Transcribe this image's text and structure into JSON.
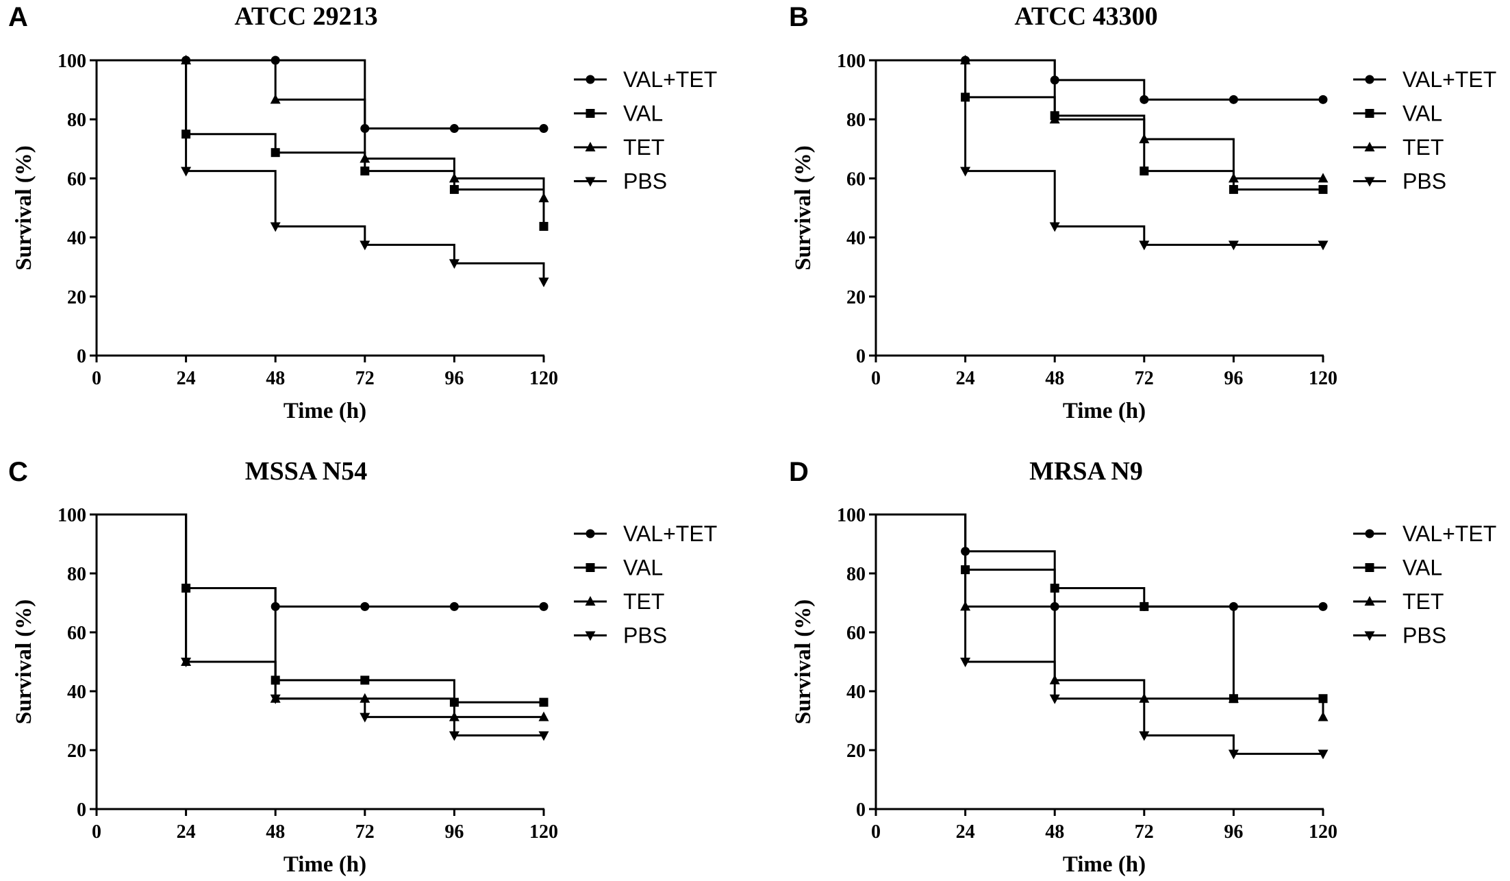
{
  "figure": {
    "panels": [
      "A",
      "B",
      "C",
      "D"
    ]
  },
  "chart_data": [
    {
      "type": "line",
      "subtype": "kaplan-meier-survival",
      "panel": "A",
      "title": "ATCC 29213",
      "xlabel": "Time (h)",
      "ylabel": "Survival (%)",
      "xlim": [
        0,
        120
      ],
      "ylim": [
        0,
        100
      ],
      "xticks": [
        0,
        24,
        48,
        72,
        96,
        120
      ],
      "yticks": [
        0,
        20,
        40,
        60,
        80,
        100
      ],
      "legend": "right",
      "series": [
        {
          "name": "VAL+TET",
          "marker": "circle",
          "x": [
            0,
            24,
            48,
            72,
            96,
            120
          ],
          "values": [
            100,
            100,
            100,
            76.9,
            76.9,
            76.9
          ]
        },
        {
          "name": "VAL",
          "marker": "square",
          "x": [
            0,
            24,
            48,
            72,
            96,
            120
          ],
          "values": [
            100,
            75,
            68.75,
            62.5,
            56.25,
            43.75
          ]
        },
        {
          "name": "TET",
          "marker": "triangle-up",
          "x": [
            0,
            24,
            48,
            72,
            96,
            120
          ],
          "values": [
            100,
            100,
            86.7,
            66.7,
            60,
            53.3
          ]
        },
        {
          "name": "PBS",
          "marker": "triangle-down",
          "x": [
            0,
            24,
            48,
            72,
            96,
            120
          ],
          "values": [
            100,
            62.5,
            43.75,
            37.5,
            31.25,
            25
          ]
        }
      ]
    },
    {
      "type": "line",
      "subtype": "kaplan-meier-survival",
      "panel": "B",
      "title": "ATCC 43300",
      "xlabel": "Time (h)",
      "ylabel": "Survival (%)",
      "xlim": [
        0,
        120
      ],
      "ylim": [
        0,
        100
      ],
      "xticks": [
        0,
        24,
        48,
        72,
        96,
        120
      ],
      "yticks": [
        0,
        20,
        40,
        60,
        80,
        100
      ],
      "legend": "right",
      "series": [
        {
          "name": "VAL+TET",
          "marker": "circle",
          "x": [
            0,
            24,
            48,
            72,
            96,
            120
          ],
          "values": [
            100,
            100,
            93.3,
            86.7,
            86.7,
            86.7
          ]
        },
        {
          "name": "VAL",
          "marker": "square",
          "x": [
            0,
            24,
            48,
            72,
            96,
            120
          ],
          "values": [
            100,
            87.5,
            81.25,
            62.5,
            56.25,
            56.25
          ]
        },
        {
          "name": "TET",
          "marker": "triangle-up",
          "x": [
            0,
            24,
            48,
            72,
            96,
            120
          ],
          "values": [
            100,
            100,
            80,
            73.3,
            60,
            60
          ]
        },
        {
          "name": "PBS",
          "marker": "triangle-down",
          "x": [
            0,
            24,
            48,
            72,
            96,
            120
          ],
          "values": [
            100,
            62.5,
            43.75,
            37.5,
            37.5,
            37.5
          ]
        }
      ]
    },
    {
      "type": "line",
      "subtype": "kaplan-meier-survival",
      "panel": "C",
      "title": "MSSA N54",
      "xlabel": "Time (h)",
      "ylabel": "Survival (%)",
      "xlim": [
        0,
        120
      ],
      "ylim": [
        0,
        100
      ],
      "xticks": [
        0,
        24,
        48,
        72,
        96,
        120
      ],
      "yticks": [
        0,
        20,
        40,
        60,
        80,
        100
      ],
      "legend": "right",
      "series": [
        {
          "name": "VAL+TET",
          "marker": "circle",
          "x": [
            0,
            24,
            48,
            72,
            96,
            120
          ],
          "values": [
            100,
            75,
            68.75,
            68.75,
            68.75,
            68.75
          ]
        },
        {
          "name": "VAL",
          "marker": "square",
          "x": [
            0,
            24,
            48,
            72,
            96,
            120
          ],
          "values": [
            100,
            75,
            43.75,
            43.75,
            36.25,
            36.25
          ]
        },
        {
          "name": "TET",
          "marker": "triangle-up",
          "x": [
            0,
            24,
            48,
            72,
            96,
            120
          ],
          "values": [
            100,
            50,
            37.5,
            37.5,
            31.25,
            31.25
          ]
        },
        {
          "name": "PBS",
          "marker": "triangle-down",
          "x": [
            0,
            24,
            48,
            72,
            96,
            120
          ],
          "values": [
            100,
            50,
            37.5,
            31.25,
            25,
            25
          ]
        }
      ]
    },
    {
      "type": "line",
      "subtype": "kaplan-meier-survival",
      "panel": "D",
      "title": "MRSA N9",
      "xlabel": "Time (h)",
      "ylabel": "Survival (%)",
      "xlim": [
        0,
        120
      ],
      "ylim": [
        0,
        100
      ],
      "xticks": [
        0,
        24,
        48,
        72,
        96,
        120
      ],
      "yticks": [
        0,
        20,
        40,
        60,
        80,
        100
      ],
      "legend": "right",
      "series": [
        {
          "name": "VAL+TET",
          "marker": "circle",
          "x": [
            0,
            24,
            48,
            72,
            96,
            120
          ],
          "values": [
            100,
            87.5,
            68.75,
            68.75,
            68.75,
            68.75
          ]
        },
        {
          "name": "VAL",
          "marker": "square",
          "x": [
            0,
            24,
            48,
            72,
            96,
            120
          ],
          "values": [
            100,
            81.25,
            75,
            68.75,
            37.5,
            37.5
          ]
        },
        {
          "name": "TET",
          "marker": "triangle-up",
          "x": [
            0,
            24,
            48,
            72,
            96,
            120
          ],
          "values": [
            100,
            68.75,
            43.75,
            37.5,
            37.5,
            31.25
          ]
        },
        {
          "name": "PBS",
          "marker": "triangle-down",
          "x": [
            0,
            24,
            48,
            72,
            96,
            120
          ],
          "values": [
            100,
            50,
            37.5,
            25,
            18.75,
            18.75
          ]
        }
      ]
    }
  ]
}
